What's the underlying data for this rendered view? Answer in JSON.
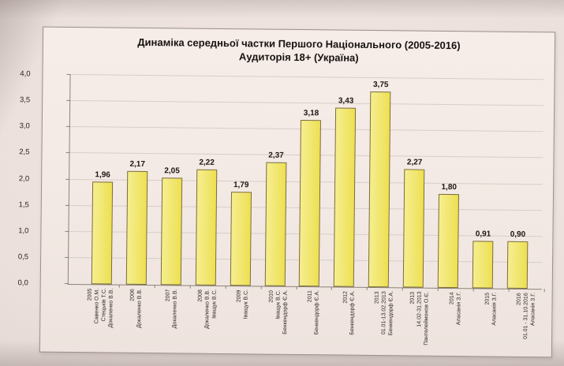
{
  "chart_data": {
    "type": "bar",
    "title": "Динаміка середньої частки Першого Національного (2005-2016)",
    "subtitle": "Аудиторія 18+ (Україна)",
    "ylim": [
      0,
      4.0
    ],
    "ytick_labels": [
      "4,0",
      "3,5",
      "3,0",
      "2,5",
      "2,0",
      "1,5",
      "1,0",
      "0,5",
      "0,0"
    ],
    "grid": true,
    "legend": false,
    "bar_fill": "#f1e670",
    "bar_border": "#7a6c34",
    "bars": [
      {
        "year": "2005",
        "names": [
          "Савенко О.М.",
          "Стецьків Т.С.",
          "Докаленко В.В."
        ],
        "value": 1.96,
        "value_label": "1,96"
      },
      {
        "year": "2006",
        "names": [
          "Докаленко В.В."
        ],
        "value": 2.17,
        "value_label": "2,17"
      },
      {
        "year": "2007",
        "names": [
          "Докаленко В.В."
        ],
        "value": 2.05,
        "value_label": "2,05"
      },
      {
        "year": "2008",
        "names": [
          "Докаленко В.В.",
          "Іващук В.С."
        ],
        "value": 2.22,
        "value_label": "2,22"
      },
      {
        "year": "2009",
        "names": [
          "Іващук В.С."
        ],
        "value": 1.79,
        "value_label": "1,79"
      },
      {
        "year": "2010",
        "names": [
          "Іващук В.С.",
          "Бенкендорф Є.А."
        ],
        "value": 2.37,
        "value_label": "2,37"
      },
      {
        "year": "2011",
        "names": [
          "Бенкендорф Є.А."
        ],
        "value": 3.18,
        "value_label": "3,18"
      },
      {
        "year": "2012",
        "names": [
          "Бенкендорф Є.А."
        ],
        "value": 3.43,
        "value_label": "3,43"
      },
      {
        "year": "2013",
        "names": [
          "01.01-13.02.2013",
          "Бенкендорф Є.А."
        ],
        "value": 3.75,
        "value_label": "3,75"
      },
      {
        "year": "2013",
        "names": [
          "14.02-31.2013",
          "Пантелеймонов О.Є."
        ],
        "value": 2.27,
        "value_label": "2,27"
      },
      {
        "year": "2014",
        "names": [
          "Аласанія З.Г."
        ],
        "value": 1.8,
        "value_label": "1,80"
      },
      {
        "year": "2015",
        "names": [
          "Аласанія З.Г."
        ],
        "value": 0.91,
        "value_label": "0,91"
      },
      {
        "year": "2016",
        "names": [
          "01.01 - 31.10.2016",
          "Аласанія З.Г."
        ],
        "value": 0.9,
        "value_label": "0,90"
      }
    ]
  }
}
